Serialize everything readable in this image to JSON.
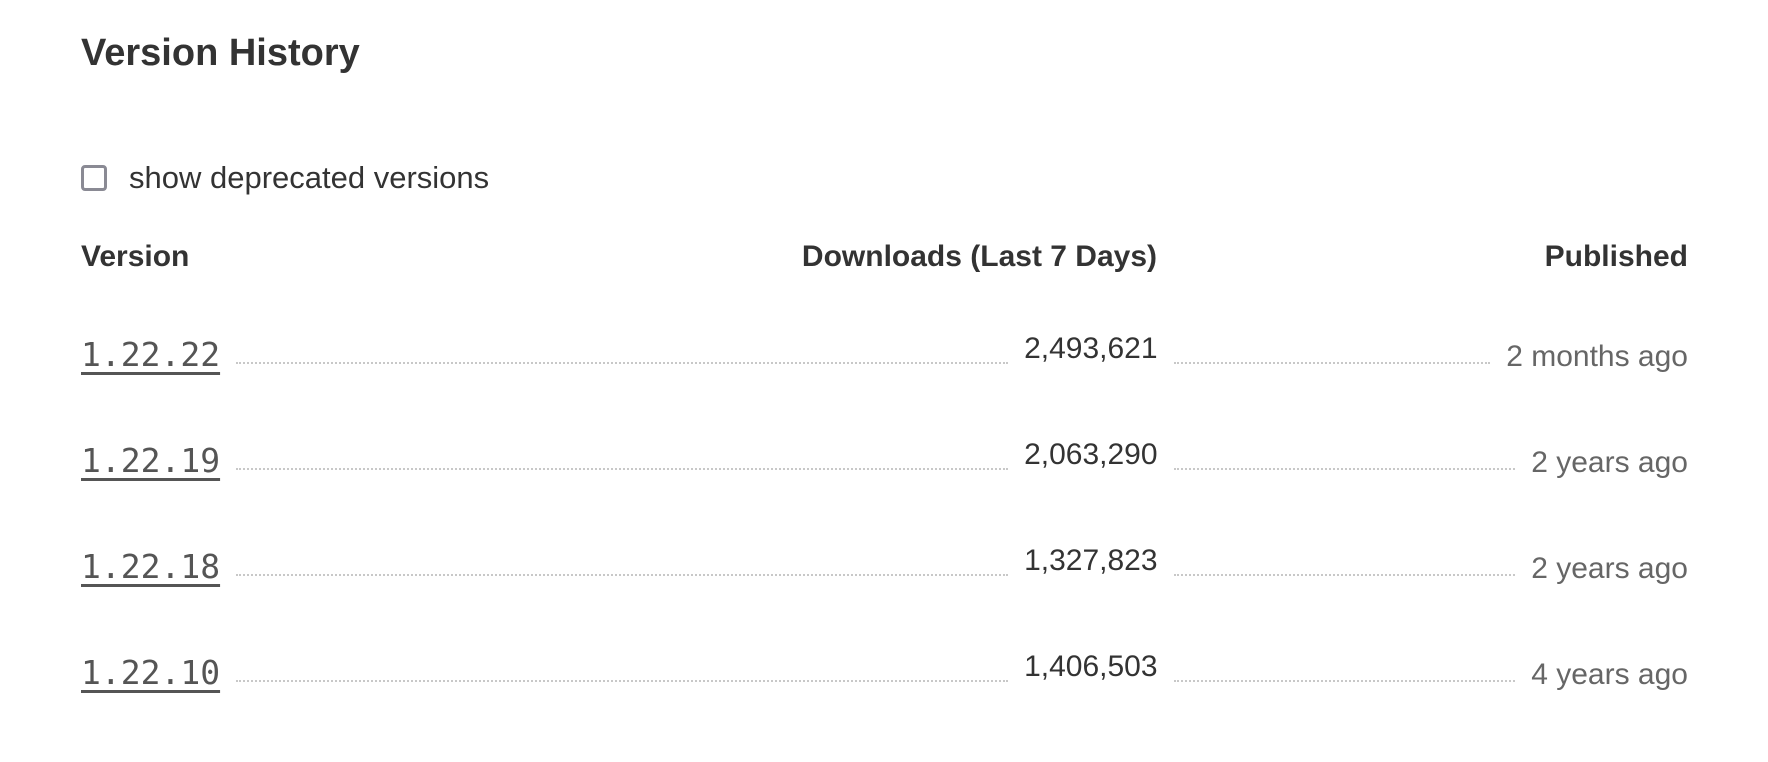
{
  "title": "Version History",
  "deprecated_toggle": {
    "label": "show deprecated versions",
    "checked": false
  },
  "columns": {
    "version": "Version",
    "downloads": "Downloads (Last 7 Days)",
    "published": "Published"
  },
  "rows": [
    {
      "version": "1.22.22",
      "downloads": "2,493,621",
      "published": "2 months ago"
    },
    {
      "version": "1.22.19",
      "downloads": "2,063,290",
      "published": "2 years ago"
    },
    {
      "version": "1.22.18",
      "downloads": "1,327,823",
      "published": "2 years ago"
    },
    {
      "version": "1.22.10",
      "downloads": "1,406,503",
      "published": "4 years ago"
    }
  ]
}
